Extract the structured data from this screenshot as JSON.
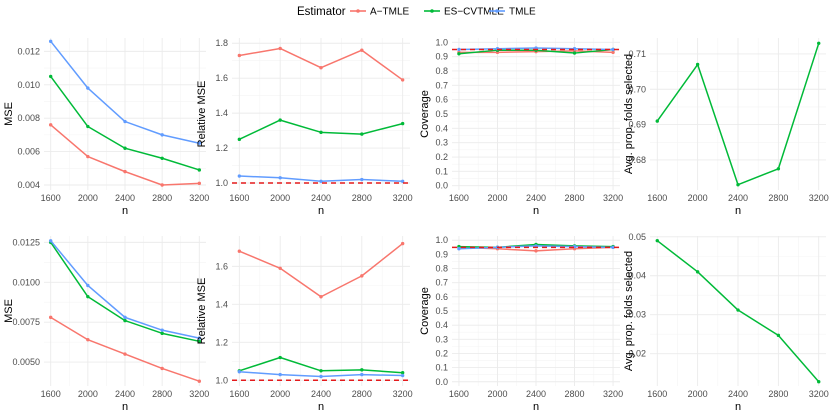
{
  "legend": {
    "title": "Estimator",
    "entries": [
      {
        "label": "A−TMLE",
        "color": "#F8766D"
      },
      {
        "label": "ES−CVTMLE",
        "color": "#00BA38"
      },
      {
        "label": "TMLE",
        "color": "#619CFF"
      }
    ]
  },
  "reference_line_color": "#E41A1C",
  "chart_data": [
    {
      "id": "r1c1",
      "type": "line",
      "xlabel": "n",
      "ylabel": "MSE",
      "x": [
        1600,
        2000,
        2400,
        2800,
        3200
      ],
      "ylim": [
        0.0037,
        0.0128
      ],
      "yticks": [
        0.004,
        0.006,
        0.008,
        0.01,
        0.012
      ],
      "ytick_labels": [
        "0.004",
        "0.006",
        "0.008",
        "0.010",
        "0.012"
      ],
      "series": [
        {
          "name": "A−TMLE",
          "values": [
            0.0076,
            0.0057,
            0.0048,
            0.004,
            0.0041
          ]
        },
        {
          "name": "ES−CVTMLE",
          "values": [
            0.0105,
            0.0075,
            0.0062,
            0.0056,
            0.0049
          ]
        },
        {
          "name": "TMLE",
          "values": [
            0.0126,
            0.0098,
            0.0078,
            0.007,
            0.0065
          ]
        }
      ]
    },
    {
      "id": "r1c2",
      "type": "line",
      "xlabel": "n",
      "ylabel": "Relative MSE",
      "x": [
        1600,
        2000,
        2400,
        2800,
        3200
      ],
      "ylim": [
        0.96,
        1.83
      ],
      "yticks": [
        1.0,
        1.2,
        1.4,
        1.6,
        1.8
      ],
      "ytick_labels": [
        "1.0",
        "1.2",
        "1.4",
        "1.6",
        "1.8"
      ],
      "hline": 1.0,
      "series": [
        {
          "name": "A−TMLE",
          "values": [
            1.73,
            1.77,
            1.66,
            1.76,
            1.59
          ]
        },
        {
          "name": "ES−CVTMLE",
          "values": [
            1.25,
            1.36,
            1.29,
            1.28,
            1.34
          ]
        },
        {
          "name": "TMLE",
          "values": [
            1.04,
            1.03,
            1.01,
            1.02,
            1.01
          ]
        }
      ]
    },
    {
      "id": "r1c3",
      "type": "line",
      "xlabel": "n",
      "ylabel": "Coverage",
      "x": [
        1600,
        2000,
        2400,
        2800,
        3200
      ],
      "ylim": [
        -0.03,
        1.03
      ],
      "yticks": [
        0.0,
        0.1,
        0.2,
        0.3,
        0.4,
        0.5,
        0.6,
        0.7,
        0.8,
        0.9,
        1.0
      ],
      "ytick_labels": [
        "0.0",
        "0.1",
        "0.2",
        "0.3",
        "0.4",
        "0.5",
        "0.6",
        "0.7",
        "0.8",
        "0.9",
        "1.0"
      ],
      "hline": 0.95,
      "series": [
        {
          "name": "A−TMLE",
          "values": [
            0.93,
            0.93,
            0.935,
            0.94,
            0.93
          ]
        },
        {
          "name": "ES−CVTMLE",
          "values": [
            0.92,
            0.945,
            0.945,
            0.925,
            0.95
          ]
        },
        {
          "name": "TMLE",
          "values": [
            0.95,
            0.955,
            0.96,
            0.955,
            0.95
          ]
        }
      ]
    },
    {
      "id": "r1c4",
      "type": "line",
      "xlabel": "n",
      "ylabel": "Avg. prop. folds selected",
      "x": [
        1600,
        2000,
        2400,
        2800,
        3200
      ],
      "ylim": [
        0.6715,
        0.7145
      ],
      "yticks": [
        0.68,
        0.69,
        0.7,
        0.71
      ],
      "ytick_labels": [
        "0.68",
        "0.69",
        "0.70",
        "0.71"
      ],
      "series": [
        {
          "name": "ES−CVTMLE",
          "values": [
            0.691,
            0.707,
            0.673,
            0.6775,
            0.713
          ]
        }
      ]
    },
    {
      "id": "r2c1",
      "type": "line",
      "xlabel": "n",
      "ylabel": "MSE",
      "x": [
        1600,
        2000,
        2400,
        2800,
        3200
      ],
      "ylim": [
        0.0035,
        0.0129
      ],
      "yticks": [
        0.005,
        0.0075,
        0.01,
        0.0125
      ],
      "ytick_labels": [
        "0.0050",
        "0.0075",
        "0.0100",
        "0.0125"
      ],
      "series": [
        {
          "name": "A−TMLE",
          "values": [
            0.0078,
            0.0064,
            0.0055,
            0.0046,
            0.0038
          ]
        },
        {
          "name": "ES−CVTMLE",
          "values": [
            0.0125,
            0.0091,
            0.0076,
            0.0068,
            0.0063
          ]
        },
        {
          "name": "TMLE",
          "values": [
            0.0126,
            0.0098,
            0.0078,
            0.007,
            0.0065
          ]
        }
      ]
    },
    {
      "id": "r2c2",
      "type": "line",
      "xlabel": "n",
      "ylabel": "Relative MSE",
      "x": [
        1600,
        2000,
        2400,
        2800,
        3200
      ],
      "ylim": [
        0.97,
        1.76
      ],
      "yticks": [
        1.0,
        1.2,
        1.4,
        1.6
      ],
      "ytick_labels": [
        "1.0",
        "1.2",
        "1.4",
        "1.6"
      ],
      "hline": 1.0,
      "series": [
        {
          "name": "A−TMLE",
          "values": [
            1.68,
            1.59,
            1.44,
            1.55,
            1.72
          ]
        },
        {
          "name": "ES−CVTMLE",
          "values": [
            1.05,
            1.12,
            1.05,
            1.055,
            1.04
          ]
        },
        {
          "name": "TMLE",
          "values": [
            1.045,
            1.03,
            1.02,
            1.03,
            1.025
          ]
        }
      ]
    },
    {
      "id": "r2c3",
      "type": "line",
      "xlabel": "n",
      "ylabel": "Coverage",
      "x": [
        1600,
        2000,
        2400,
        2800,
        3200
      ],
      "ylim": [
        -0.03,
        1.03
      ],
      "yticks": [
        0.0,
        0.1,
        0.2,
        0.3,
        0.4,
        0.5,
        0.6,
        0.7,
        0.8,
        0.9,
        1.0
      ],
      "ytick_labels": [
        "0.0",
        "0.1",
        "0.2",
        "0.3",
        "0.4",
        "0.5",
        "0.6",
        "0.7",
        "0.8",
        "0.9",
        "1.0"
      ],
      "hline": 0.95,
      "series": [
        {
          "name": "A−TMLE",
          "values": [
            0.95,
            0.94,
            0.925,
            0.94,
            0.95
          ]
        },
        {
          "name": "ES−CVTMLE",
          "values": [
            0.955,
            0.95,
            0.97,
            0.96,
            0.955
          ]
        },
        {
          "name": "TMLE",
          "values": [
            0.94,
            0.95,
            0.96,
            0.955,
            0.95
          ]
        }
      ]
    },
    {
      "id": "r2c4",
      "type": "line",
      "xlabel": "n",
      "ylabel": "Avg. prop. folds selected",
      "x": [
        1600,
        2000,
        2400,
        2800,
        3200
      ],
      "ylim": [
        0.0117,
        0.0502
      ],
      "yticks": [
        0.02,
        0.03,
        0.04,
        0.05
      ],
      "ytick_labels": [
        "0.02",
        "0.03",
        "0.04",
        "0.05"
      ],
      "series": [
        {
          "name": "ES−CVTMLE",
          "values": [
            0.049,
            0.041,
            0.0312,
            0.0247,
            0.0128
          ]
        }
      ]
    }
  ]
}
